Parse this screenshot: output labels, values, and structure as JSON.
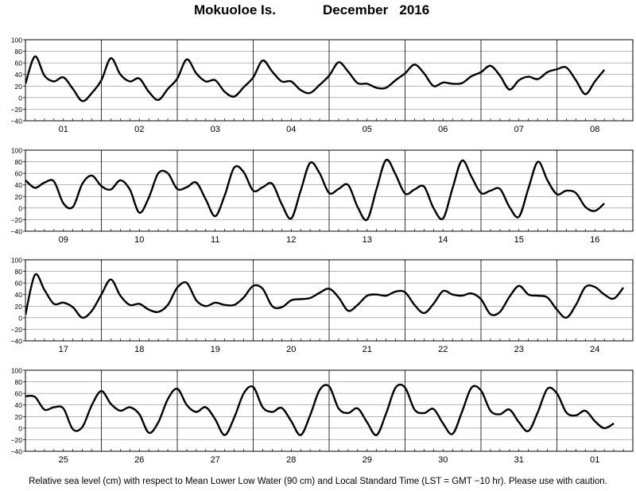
{
  "title": {
    "location": "Mokuoloe Is.",
    "month_year": "December   2016"
  },
  "footer": "Relative sea level (cm) with respect to Mean Lower Low Water (90 cm) and Local Standard Time (LST = GMT −10 hr). Please use with caution.",
  "colors": {
    "curve": "#000000",
    "grid": "#8c8c8c",
    "frame": "#000000"
  },
  "chart_data": {
    "type": "line",
    "ylim": [
      -40,
      100
    ],
    "y_ticks": [
      100,
      80,
      60,
      40,
      20,
      0,
      -20,
      -40
    ],
    "y_tick_labels": [
      "100",
      "80",
      "60",
      "40",
      "20",
      "0",
      "−20",
      "−40"
    ],
    "grid": true,
    "points_per_day": 8,
    "x_unit": "hours since start of day 1 of the row (LST), samples every 3 h",
    "panels": [
      {
        "day_labels": [
          "01",
          "02",
          "03",
          "04",
          "05",
          "06",
          "07",
          "08"
        ],
        "values": [
          24,
          71,
          38,
          28,
          35,
          15,
          -6,
          8,
          30,
          68,
          40,
          28,
          33,
          10,
          -4,
          15,
          33,
          66,
          42,
          28,
          30,
          10,
          2,
          18,
          35,
          64,
          45,
          28,
          28,
          13,
          8,
          22,
          38,
          61,
          45,
          25,
          24,
          17,
          17,
          30,
          42,
          57,
          42,
          20,
          26,
          24,
          25,
          37,
          44,
          55,
          38,
          14,
          30,
          36,
          32,
          44,
          49,
          52,
          30,
          6,
          28,
          48
        ]
      },
      {
        "day_labels": [
          "09",
          "10",
          "11",
          "12",
          "13",
          "14",
          "15",
          "16"
        ],
        "values": [
          48,
          35,
          44,
          46,
          8,
          2,
          42,
          56,
          38,
          32,
          48,
          32,
          -8,
          18,
          60,
          60,
          33,
          36,
          44,
          15,
          -14,
          22,
          70,
          62,
          30,
          36,
          42,
          7,
          -18,
          30,
          78,
          60,
          26,
          33,
          40,
          2,
          -20,
          33,
          83,
          58,
          25,
          32,
          37,
          0,
          -18,
          34,
          82,
          54,
          26,
          30,
          33,
          2,
          -15,
          34,
          80,
          48,
          24,
          30,
          26,
          2,
          -5,
          8
        ]
      },
      {
        "day_labels": [
          "17",
          "18",
          "19",
          "20",
          "21",
          "22",
          "23",
          "24"
        ],
        "values": [
          5,
          74,
          48,
          24,
          26,
          18,
          0,
          12,
          40,
          66,
          38,
          22,
          24,
          14,
          10,
          22,
          52,
          60,
          30,
          20,
          26,
          22,
          22,
          35,
          55,
          50,
          20,
          18,
          30,
          32,
          34,
          43,
          50,
          35,
          12,
          22,
          38,
          40,
          38,
          45,
          44,
          22,
          8,
          24,
          46,
          40,
          38,
          42,
          32,
          6,
          10,
          36,
          55,
          40,
          38,
          35,
          14,
          0,
          22,
          53,
          53,
          40,
          33,
          52
        ]
      },
      {
        "day_labels": [
          "25",
          "26",
          "27",
          "28",
          "29",
          "30",
          "31",
          "01"
        ],
        "values": [
          55,
          54,
          32,
          36,
          34,
          -2,
          2,
          40,
          64,
          42,
          30,
          36,
          24,
          -8,
          10,
          50,
          68,
          40,
          28,
          36,
          15,
          -12,
          18,
          60,
          71,
          36,
          28,
          35,
          12,
          -12,
          22,
          66,
          72,
          34,
          26,
          34,
          10,
          -12,
          25,
          70,
          70,
          32,
          26,
          33,
          8,
          -10,
          28,
          70,
          65,
          30,
          24,
          32,
          10,
          -5,
          28,
          68,
          60,
          27,
          22,
          30,
          12,
          0,
          8
        ]
      }
    ]
  }
}
